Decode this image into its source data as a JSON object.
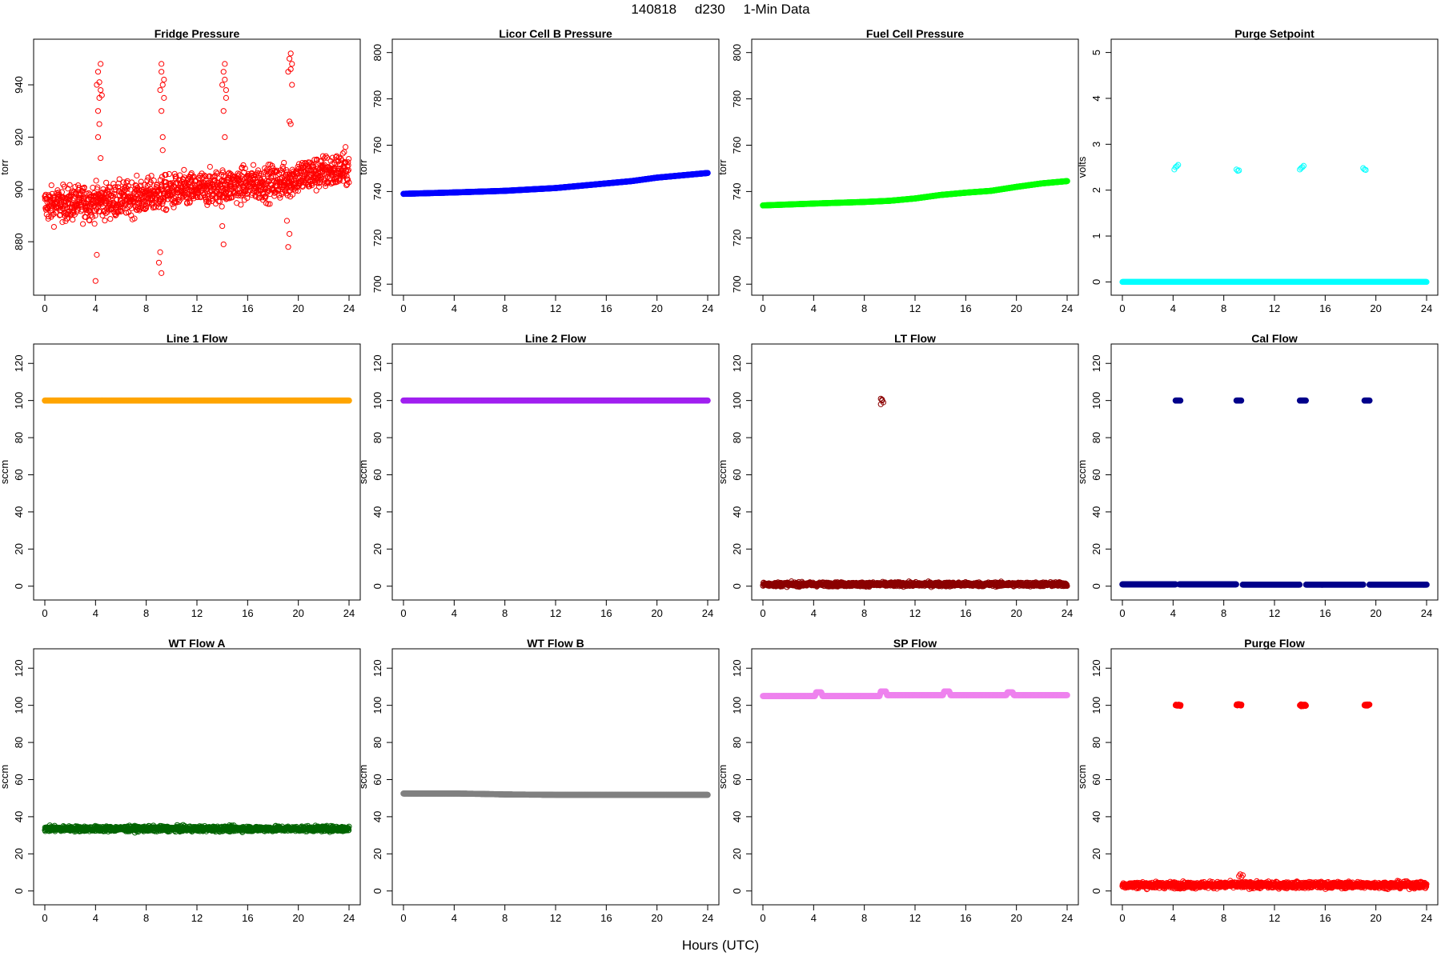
{
  "header": {
    "title_parts": [
      "140818",
      "d230",
      "1-Min Data"
    ]
  },
  "xlabel": "Hours (UTC)",
  "chart_data": [
    {
      "type": "scatter",
      "title": "Fridge Pressure",
      "ylabel": "torr",
      "color": "#ff0000",
      "marker": "open-circle",
      "xlim": [
        0,
        24
      ],
      "ylim": [
        862,
        955
      ],
      "xticks": [
        0,
        4,
        8,
        12,
        16,
        20,
        24
      ],
      "yticks": [
        880,
        900,
        920,
        940
      ],
      "series": [
        {
          "segments": [
            [
              0,
              24,
              895,
              7
            ]
          ]
        },
        {
          "trend": [
            [
              0,
              894
            ],
            [
              6,
              896
            ],
            [
              10,
              899
            ],
            [
              14,
              901
            ],
            [
              16,
              902
            ],
            [
              19,
              903
            ],
            [
              20,
              905
            ],
            [
              24,
              908
            ]
          ]
        },
        {
          "points": [
            [
              4.1,
              940
            ],
            [
              4.2,
              945
            ],
            [
              4.3,
              935
            ],
            [
              4.4,
              948
            ],
            [
              4.3,
              925
            ],
            [
              4.2,
              920
            ],
            [
              4.4,
              912
            ],
            [
              4.1,
              875
            ],
            [
              4.0,
              865
            ],
            [
              4.2,
              930
            ],
            [
              4.3,
              941
            ],
            [
              4.4,
              938
            ],
            [
              4.5,
              936
            ]
          ]
        },
        {
          "points": [
            [
              9.1,
              938
            ],
            [
              9.2,
              945
            ],
            [
              9.3,
              940
            ],
            [
              9.4,
              935
            ],
            [
              9.2,
              930
            ],
            [
              9.3,
              920
            ],
            [
              9.1,
              876
            ],
            [
              9.0,
              872
            ],
            [
              9.2,
              868
            ],
            [
              9.3,
              915
            ],
            [
              9.4,
              942
            ],
            [
              9.2,
              948
            ]
          ]
        },
        {
          "points": [
            [
              14.0,
              940
            ],
            [
              14.1,
              945
            ],
            [
              14.2,
              948
            ],
            [
              14.3,
              938
            ],
            [
              14.1,
              930
            ],
            [
              14.2,
              920
            ],
            [
              14.1,
              879
            ],
            [
              14.0,
              886
            ],
            [
              14.3,
              935
            ],
            [
              14.2,
              942
            ]
          ]
        },
        {
          "points": [
            [
              19.2,
              945
            ],
            [
              19.3,
              950
            ],
            [
              19.4,
              952
            ],
            [
              19.5,
              948
            ],
            [
              19.3,
              926
            ],
            [
              19.4,
              925
            ],
            [
              19.2,
              878
            ],
            [
              19.3,
              883
            ],
            [
              19.1,
              888
            ],
            [
              19.5,
              940
            ],
            [
              19.4,
              946
            ]
          ]
        }
      ]
    },
    {
      "type": "line",
      "title": "Licor Cell B Pressure",
      "ylabel": "torr",
      "color": "#0000ff",
      "marker": "filled-circle",
      "xlim": [
        0,
        24
      ],
      "ylim": [
        698,
        803
      ],
      "xticks": [
        0,
        4,
        8,
        12,
        16,
        20,
        24
      ],
      "yticks": [
        700,
        720,
        740,
        760,
        780,
        800
      ],
      "series": [
        {
          "x": [
            0,
            4,
            8,
            12,
            16,
            18,
            20,
            22,
            24
          ],
          "y": [
            739,
            739.6,
            740.3,
            741.5,
            743.5,
            744.5,
            746,
            747,
            748
          ]
        }
      ]
    },
    {
      "type": "line",
      "title": "Fuel Cell Pressure",
      "ylabel": "torr",
      "color": "#00ff00",
      "marker": "filled-circle",
      "xlim": [
        0,
        24
      ],
      "ylim": [
        698,
        803
      ],
      "xticks": [
        0,
        4,
        8,
        12,
        16,
        20,
        24
      ],
      "yticks": [
        700,
        720,
        740,
        760,
        780,
        800
      ],
      "series": [
        {
          "x": [
            0,
            4,
            8,
            10,
            12,
            14,
            16,
            18,
            20,
            22,
            24
          ],
          "y": [
            734,
            734.8,
            735.5,
            736,
            737,
            738.5,
            739.5,
            740.3,
            742,
            743.5,
            744.5
          ]
        }
      ]
    },
    {
      "type": "scatter",
      "title": "Purge Setpoint",
      "ylabel": "volts",
      "color": "#00ffff",
      "marker": "open-circle",
      "xlim": [
        0,
        24
      ],
      "ylim": [
        -0.15,
        5.15
      ],
      "xticks": [
        0,
        4,
        8,
        12,
        16,
        20,
        24
      ],
      "yticks": [
        0,
        1,
        2,
        3,
        4,
        5
      ],
      "series": [
        {
          "segments": [
            [
              0,
              24,
              0,
              0
            ]
          ]
        },
        {
          "points": [
            [
              4.1,
              2.45
            ],
            [
              4.2,
              2.5
            ],
            [
              4.3,
              2.52
            ],
            [
              4.4,
              2.55
            ],
            [
              9.0,
              2.45
            ],
            [
              9.1,
              2.42
            ],
            [
              9.2,
              2.43
            ],
            [
              14.0,
              2.45
            ],
            [
              14.1,
              2.48
            ],
            [
              14.2,
              2.5
            ],
            [
              14.3,
              2.53
            ],
            [
              19.0,
              2.48
            ],
            [
              19.1,
              2.45
            ],
            [
              19.2,
              2.44
            ]
          ]
        }
      ]
    },
    {
      "type": "line",
      "title": "Line 1 Flow",
      "ylabel": "sccm",
      "color": "#ffa500",
      "marker": "filled-circle",
      "xlim": [
        0,
        24
      ],
      "ylim": [
        -4,
        127
      ],
      "xticks": [
        0,
        4,
        8,
        12,
        16,
        20,
        24
      ],
      "yticks": [
        0,
        20,
        40,
        60,
        80,
        100,
        120
      ],
      "series": [
        {
          "x": [
            0,
            24
          ],
          "y": [
            100,
            100
          ]
        }
      ]
    },
    {
      "type": "line",
      "title": "Line 2 Flow",
      "ylabel": "sccm",
      "color": "#a020f0",
      "marker": "filled-circle",
      "xlim": [
        0,
        24
      ],
      "ylim": [
        -4,
        127
      ],
      "xticks": [
        0,
        4,
        8,
        12,
        16,
        20,
        24
      ],
      "yticks": [
        0,
        20,
        40,
        60,
        80,
        100,
        120
      ],
      "series": [
        {
          "x": [
            0,
            24
          ],
          "y": [
            100,
            100
          ]
        }
      ]
    },
    {
      "type": "scatter",
      "title": "LT Flow",
      "ylabel": "sccm",
      "color": "#8b0000",
      "marker": "open-circle",
      "xlim": [
        0,
        24
      ],
      "ylim": [
        -4,
        127
      ],
      "xticks": [
        0,
        4,
        8,
        12,
        16,
        20,
        24
      ],
      "yticks": [
        0,
        20,
        40,
        60,
        80,
        100,
        120
      ],
      "series": [
        {
          "segments": [
            [
              0,
              24,
              1,
              1.2
            ]
          ]
        },
        {
          "points": [
            [
              9.3,
              101
            ],
            [
              9.4,
              100
            ],
            [
              9.5,
              99
            ],
            [
              9.3,
              98
            ],
            [
              9.4,
              100.5
            ]
          ]
        }
      ]
    },
    {
      "type": "scatter",
      "title": "Cal Flow",
      "ylabel": "sccm",
      "color": "#00008b",
      "marker": "filled-circle",
      "xlim": [
        0,
        24
      ],
      "ylim": [
        -4,
        127
      ],
      "xticks": [
        0,
        4,
        8,
        12,
        16,
        20,
        24
      ],
      "yticks": [
        0,
        20,
        40,
        60,
        80,
        100,
        120
      ],
      "series": [
        {
          "segments": [
            [
              0,
              4.2,
              1,
              0
            ],
            [
              4.5,
              9.0,
              1,
              0
            ],
            [
              9.5,
              14.0,
              0.8,
              0
            ],
            [
              14.5,
              19.0,
              0.8,
              0
            ],
            [
              19.5,
              24,
              0.8,
              0
            ]
          ]
        },
        {
          "segments": [
            [
              4.2,
              4.6,
              100,
              0
            ],
            [
              9.0,
              9.4,
              100,
              0
            ],
            [
              14.0,
              14.5,
              100,
              0
            ],
            [
              19.1,
              19.5,
              100,
              0
            ]
          ]
        }
      ]
    },
    {
      "type": "scatter",
      "title": "WT Flow A",
      "ylabel": "sccm",
      "color": "#006400",
      "marker": "open-circle",
      "xlim": [
        0,
        24
      ],
      "ylim": [
        -4,
        127
      ],
      "xticks": [
        0,
        4,
        8,
        12,
        16,
        20,
        24
      ],
      "yticks": [
        0,
        20,
        40,
        60,
        80,
        100,
        120
      ],
      "series": [
        {
          "segments": [
            [
              0,
              24,
              33.5,
              1.5
            ]
          ]
        }
      ]
    },
    {
      "type": "line",
      "title": "WT Flow B",
      "ylabel": "sccm",
      "color": "#808080",
      "marker": "filled-circle",
      "xlim": [
        0,
        24
      ],
      "ylim": [
        -4,
        127
      ],
      "xticks": [
        0,
        4,
        8,
        12,
        16,
        20,
        24
      ],
      "yticks": [
        0,
        20,
        40,
        60,
        80,
        100,
        120
      ],
      "series": [
        {
          "x": [
            0,
            4,
            6,
            8,
            12,
            16,
            20,
            24
          ],
          "y": [
            52.5,
            52.5,
            52.3,
            52,
            51.8,
            51.8,
            51.8,
            51.8
          ]
        }
      ]
    },
    {
      "type": "line",
      "title": "SP Flow",
      "ylabel": "sccm",
      "color": "#ee82ee",
      "marker": "filled-circle",
      "xlim": [
        0,
        24
      ],
      "ylim": [
        -4,
        127
      ],
      "xticks": [
        0,
        4,
        8,
        12,
        16,
        20,
        24
      ],
      "yticks": [
        0,
        20,
        40,
        60,
        80,
        100,
        120
      ],
      "series": [
        {
          "x": [
            0,
            4.1,
            4.2,
            4.6,
            4.7,
            9.2,
            9.3,
            9.7,
            9.8,
            14.2,
            14.3,
            14.7,
            14.8,
            19.2,
            19.3,
            19.7,
            19.8,
            24
          ],
          "y": [
            105,
            105,
            107,
            107,
            105,
            105,
            107.5,
            107.5,
            105.5,
            105.5,
            107.5,
            107.5,
            105.5,
            105.5,
            107,
            107,
            105.5,
            105.5
          ]
        }
      ]
    },
    {
      "type": "scatter",
      "title": "Purge Flow",
      "ylabel": "sccm",
      "color": "#ff0000",
      "marker": "open-circle",
      "xlim": [
        0,
        24
      ],
      "ylim": [
        -4,
        127
      ],
      "xticks": [
        0,
        4,
        8,
        12,
        16,
        20,
        24
      ],
      "yticks": [
        0,
        20,
        40,
        60,
        80,
        100,
        120
      ],
      "series": [
        {
          "segments": [
            [
              0,
              24,
              3.2,
              1.8
            ]
          ]
        },
        {
          "points": [
            [
              9.2,
              8
            ],
            [
              9.3,
              9
            ],
            [
              9.4,
              7.5
            ],
            [
              9.5,
              8.5
            ]
          ]
        },
        {
          "segments": [
            [
              4.2,
              4.6,
              100,
              0.6
            ],
            [
              9.0,
              9.4,
              100.3,
              0.6
            ],
            [
              14.0,
              14.5,
              100,
              0.6
            ],
            [
              19.1,
              19.5,
              100.2,
              0.6
            ]
          ]
        }
      ]
    }
  ]
}
